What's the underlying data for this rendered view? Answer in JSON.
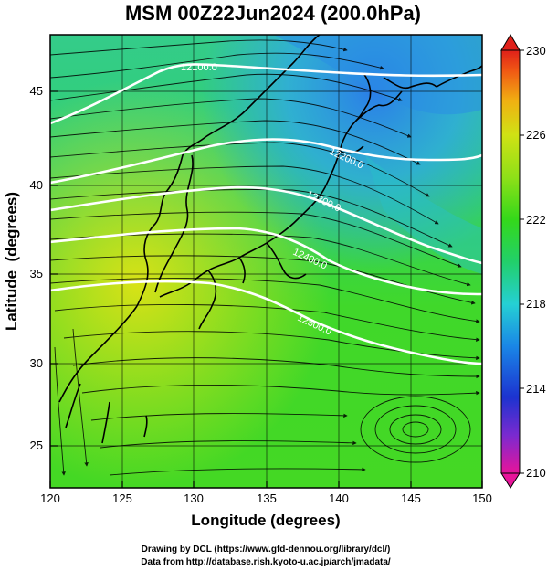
{
  "title": "MSM 00Z22Jun2024 (200.0hPa)",
  "x_axis": {
    "title": "Longitude (degrees)",
    "range": [
      120,
      150
    ],
    "ticks": [
      "120",
      "125",
      "130",
      "135",
      "140",
      "145",
      "150"
    ]
  },
  "y_axis": {
    "title": "Latitude  (degrees)",
    "range": [
      22.5,
      47.5
    ],
    "ticks": [
      "25",
      "30",
      "35",
      "40",
      "45"
    ]
  },
  "colorbar": {
    "range": [
      210,
      230
    ],
    "labels": [
      "230",
      "226",
      "222",
      "218",
      "214",
      "210"
    ],
    "colors": [
      "#e8149a",
      "#7a2ad0",
      "#1c33d0",
      "#1a86e6",
      "#25d0d4",
      "#22d06a",
      "#34d81a",
      "#8fe018",
      "#d0e214",
      "#f0b012",
      "#f05a14",
      "#e0201a"
    ]
  },
  "contours": [
    {
      "label": "12100.0"
    },
    {
      "label": "12200.0"
    },
    {
      "label": "12300.0"
    },
    {
      "label": "12400.0"
    },
    {
      "label": "12500.0"
    }
  ],
  "credits": {
    "line1": "Drawing by DCL (https://www.gfd-dennou.org/library/dcl/)",
    "line2": "Data from http://database.rish.kyoto-u.ac.jp/arch/jmadata/"
  }
}
